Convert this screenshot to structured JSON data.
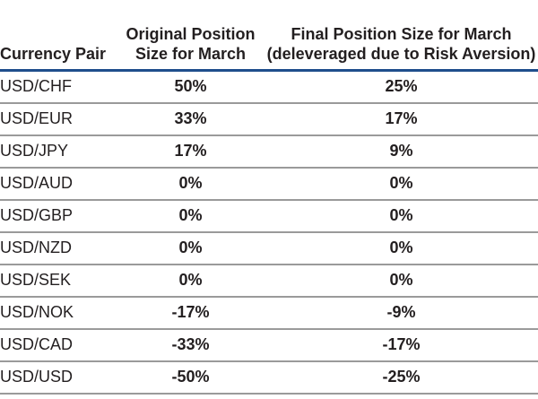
{
  "table": {
    "headers": [
      "Currency Pair",
      "Original Position Size for March",
      "Final Position Size for March (deleveraged due to Risk Aversion)"
    ],
    "rows": [
      [
        "USD/CHF",
        "50%",
        "25%"
      ],
      [
        "USD/EUR",
        "33%",
        "17%"
      ],
      [
        "USD/JPY",
        "17%",
        "9%"
      ],
      [
        "USD/AUD",
        "0%",
        "0%"
      ],
      [
        "USD/GBP",
        "0%",
        "0%"
      ],
      [
        "USD/NZD",
        "0%",
        "0%"
      ],
      [
        "USD/SEK",
        "0%",
        "0%"
      ],
      [
        "USD/NOK",
        "-17%",
        "-9%"
      ],
      [
        "USD/CAD",
        "-33%",
        "-17%"
      ],
      [
        "USD/USD",
        "-50%",
        "-25%"
      ]
    ],
    "colors": {
      "header_rule": "#1f4e8c",
      "row_rule": "#9a9a9a",
      "text": "#231f20"
    }
  }
}
